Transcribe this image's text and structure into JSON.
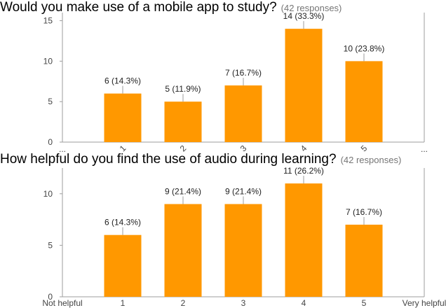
{
  "chart_data": [
    {
      "type": "bar",
      "title": "Would you make use of a mobile app to study?",
      "responses": "(42 responses)",
      "categories": [
        "1",
        "2",
        "3",
        "4",
        "5"
      ],
      "x_tick_labels": [
        "1",
        "2",
        "3",
        "4",
        "5"
      ],
      "x_end_labels": [
        "...",
        "..."
      ],
      "values": [
        6,
        5,
        7,
        14,
        10
      ],
      "data_labels": [
        "6 (14.3%)",
        "5 (11.9%)",
        "7 (16.7%)",
        "14 (33.3%)",
        "10 (23.8%)"
      ],
      "yticks": [
        0,
        5,
        10,
        15
      ],
      "ylim": [
        0,
        16
      ],
      "xlabel": "",
      "ylabel": "",
      "grid": false,
      "rotated_x_ticks": true,
      "color": "#ff9800"
    },
    {
      "type": "bar",
      "title": "How helpful do you find the use of audio during learning?",
      "responses": "(42 responses)",
      "categories": [
        "1",
        "2",
        "3",
        "4",
        "5"
      ],
      "x_tick_labels": [
        "1",
        "2",
        "3",
        "4",
        "5"
      ],
      "x_end_labels": [
        "Not helpful",
        "Very helpful"
      ],
      "values": [
        6,
        9,
        9,
        11,
        7
      ],
      "data_labels": [
        "6 (14.3%)",
        "9 (21.4%)",
        "9 (21.4%)",
        "11 (26.2%)",
        "7 (16.7%)"
      ],
      "yticks": [
        0,
        5,
        10
      ],
      "ylim": [
        0,
        12.5
      ],
      "xlabel": "",
      "ylabel": "",
      "grid": false,
      "rotated_x_ticks": false,
      "color": "#ff9800"
    }
  ]
}
